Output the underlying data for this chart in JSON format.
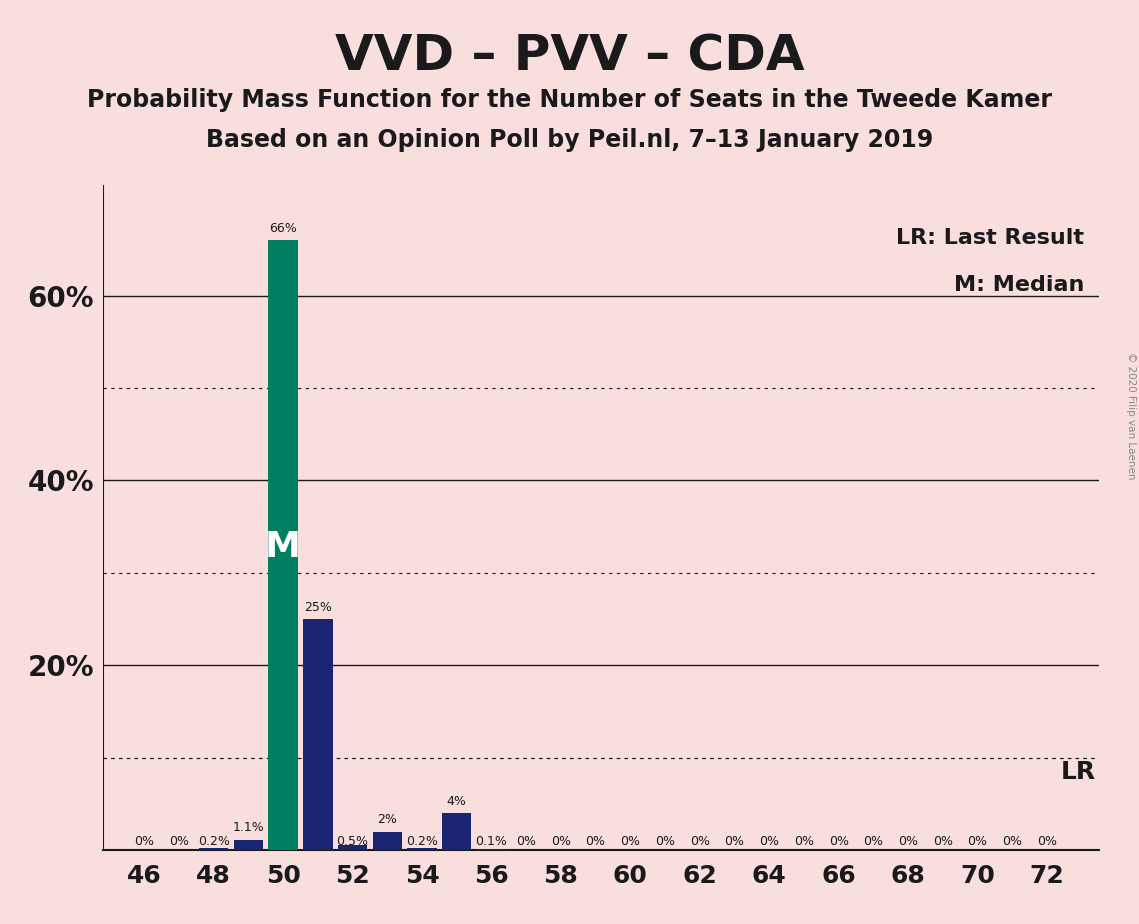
{
  "title": "VVD – PVV – CDA",
  "subtitle1": "Probability Mass Function for the Number of Seats in the Tweede Kamer",
  "subtitle2": "Based on an Opinion Poll by Peil.nl, 7–13 January 2019",
  "copyright": "© 2020 Filip van Laenen",
  "seats": [
    46,
    47,
    48,
    49,
    50,
    51,
    52,
    53,
    54,
    55,
    56,
    57,
    58,
    59,
    60,
    61,
    62,
    63,
    64,
    65,
    66,
    67,
    68,
    69,
    70,
    71,
    72
  ],
  "values": [
    0.0,
    0.0,
    0.2,
    1.1,
    66.0,
    25.0,
    0.5,
    2.0,
    0.2,
    4.0,
    0.1,
    0.0,
    0.0,
    0.0,
    0.0,
    0.0,
    0.0,
    0.0,
    0.0,
    0.0,
    0.0,
    0.0,
    0.0,
    0.0,
    0.0,
    0.0,
    0.0
  ],
  "labels": [
    "0%",
    "0%",
    "0.2%",
    "1.1%",
    "66%",
    "25%",
    "0.5%",
    "2%",
    "0.2%",
    "4%",
    "0.1%",
    "0%",
    "0%",
    "0%",
    "0%",
    "0%",
    "0%",
    "0%",
    "0%",
    "0%",
    "0%",
    "0%",
    "0%",
    "0%",
    "0%",
    "0%",
    "0%"
  ],
  "median_seat": 50,
  "lr_seat": 72,
  "bar_color_default": "#1a2472",
  "bar_color_median": "#008060",
  "background_color": "#f9dede",
  "text_color": "#1a1a1a",
  "lr_line_pct": 10.0,
  "ylim_max": 72,
  "solid_yticks": [
    20,
    40,
    60
  ],
  "dotted_yticks": [
    10,
    30,
    50
  ],
  "xtick_positions": [
    46,
    48,
    50,
    52,
    54,
    56,
    58,
    60,
    62,
    64,
    66,
    68,
    70,
    72
  ],
  "label_fontsize": 9,
  "ytick_fontsize": 20,
  "xtick_fontsize": 18,
  "title_fontsize": 36,
  "subtitle_fontsize": 17,
  "legend_fontsize": 16,
  "m_label_fontsize": 26,
  "lr_label_fontsize": 18
}
